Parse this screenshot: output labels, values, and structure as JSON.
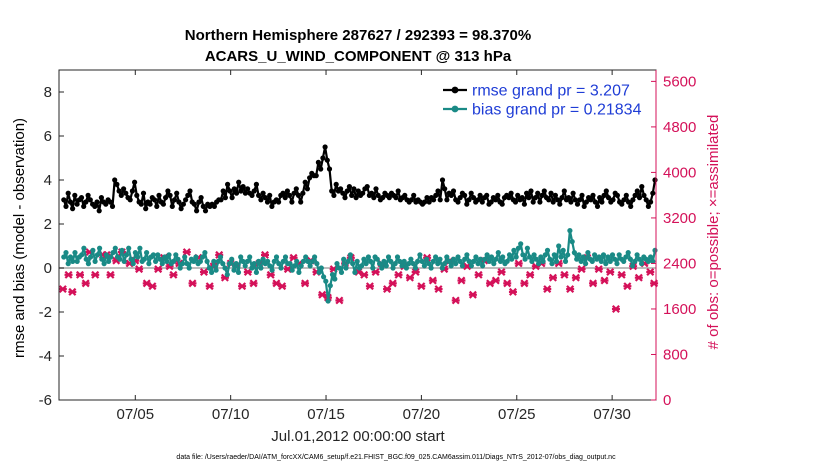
{
  "chart_data": {
    "type": "line",
    "title": [
      "Northern Hemisphere 287627 / 292393 = 98.370%",
      "ACARS_U_WIND_COMPONENT @ 313 hPa"
    ],
    "xlabel": "Jul.01,2012 00:00:00 start",
    "ylabel": "rmse and bias (model - observation)",
    "ylabel_right": "# of obs: o=possible; ×=assimilated",
    "footnote": "data file: /Users/raeder/DAI/ATM_forcXX/CAM6_setup/f.e21.FHIST_BGC.f09_025.CAM6assim.011/Diags_NTrS_2012-07/obs_diag_output.nc",
    "xlim": [
      1,
      32.3
    ],
    "ylim": [
      -6,
      9
    ],
    "ylim_right": [
      0,
      5800
    ],
    "x_ticks": [
      5,
      10,
      15,
      20,
      25,
      30
    ],
    "x_tick_labels": [
      "07/05",
      "07/10",
      "07/15",
      "07/20",
      "07/25",
      "07/30"
    ],
    "y_ticks": [
      -6,
      -4,
      -2,
      0,
      2,
      4,
      6,
      8
    ],
    "y_tick_labels": [
      "-6",
      "-4",
      "-2",
      "0",
      "2",
      "4",
      "6",
      "8"
    ],
    "y_right_ticks": [
      0,
      800,
      1600,
      2400,
      3200,
      4000,
      4800,
      5600
    ],
    "y_right_tick_labels": [
      "0",
      "800",
      "1600",
      "2400",
      "3200",
      "4000",
      "4800",
      "5600"
    ],
    "legend": {
      "position": "top-right",
      "entries": [
        "rmse grand pr = 3.207",
        "bias grand pr = 0.21834"
      ]
    },
    "colors": {
      "rmse": "#000000",
      "bias": "#1a8a86",
      "obs": "#d41159",
      "zero_line": "#bdbdbd",
      "legend_text": "#1f3dd6"
    },
    "series": [
      {
        "name": "rmse",
        "values": [
          3.1,
          2.8,
          3.4,
          3.0,
          2.7,
          3.3,
          2.9,
          3.1,
          3.2,
          2.8,
          3.0,
          3.3,
          3.1,
          2.9,
          2.8,
          3.0,
          2.6,
          3.2,
          3.0,
          2.9,
          3.1,
          3.0,
          2.8,
          4.0,
          3.8,
          3.5,
          3.3,
          3.6,
          3.4,
          3.2,
          3.1,
          3.5,
          3.9,
          3.3,
          3.0,
          2.9,
          3.4,
          2.7,
          3.0,
          2.9,
          3.2,
          3.1,
          2.8,
          3.3,
          3.0,
          2.9,
          3.2,
          3.5,
          3.3,
          2.8,
          3.1,
          3.4,
          3.0,
          2.7,
          2.9,
          3.1,
          3.3,
          3.5,
          3.0,
          2.9,
          2.6,
          3.0,
          3.2,
          2.8,
          2.6,
          2.9,
          2.8,
          2.9,
          2.8,
          3.0,
          3.1,
          3.1,
          3.5,
          3.2,
          3.8,
          3.5,
          3.2,
          3.6,
          3.4,
          3.9,
          3.5,
          3.7,
          3.4,
          3.6,
          3.4,
          3.3,
          3.5,
          3.8,
          3.3,
          3.1,
          3.4,
          3.2,
          3.0,
          3.3,
          2.8,
          3.0,
          3.1,
          3.0,
          3.3,
          3.4,
          3.2,
          3.5,
          3.3,
          3.0,
          3.4,
          3.6,
          3.3,
          3.0,
          3.4,
          3.9,
          3.6,
          4.1,
          4.3,
          4.2,
          4.2,
          4.8,
          4.5,
          5.0,
          5.5,
          4.9,
          4.5,
          3.5,
          3.3,
          3.8,
          3.5,
          3.6,
          3.4,
          3.2,
          3.5,
          3.7,
          3.3,
          3.6,
          3.2,
          3.5,
          3.3,
          3.4,
          3.6,
          3.7,
          3.3,
          3.4,
          3.2,
          3.6,
          3.3,
          3.1,
          3.2,
          3.4,
          3.3,
          3.2,
          3.4,
          3.3,
          3.2,
          3.5,
          3.1,
          3.2,
          3.3,
          3.1,
          3.0,
          3.1,
          3.3,
          3.0,
          3.1,
          3.0,
          2.9,
          3.0,
          3.2,
          3.0,
          3.2,
          3.1,
          3.3,
          3.5,
          3.1,
          4.0,
          3.6,
          3.1,
          3.4,
          3.3,
          3.5,
          3.1,
          3.0,
          3.2,
          3.4,
          3.3,
          2.9,
          3.1,
          3.4,
          3.2,
          3.0,
          3.1,
          3.3,
          3.0,
          3.2,
          3.3,
          2.9,
          3.0,
          3.2,
          3.1,
          3.3,
          3.0,
          2.9,
          3.2,
          3.3,
          3.2,
          3.4,
          3.1,
          3.0,
          3.3,
          3.1,
          3.2,
          2.9,
          3.4,
          3.2,
          3.5,
          3.0,
          3.2,
          3.4,
          3.0,
          3.3,
          3.5,
          3.2,
          3.1,
          3.4,
          3.0,
          3.3,
          3.1,
          2.9,
          3.2,
          3.5,
          3.1,
          3.2,
          3.0,
          3.4,
          3.1,
          2.9,
          3.1,
          3.3,
          2.8,
          3.0,
          3.2,
          3.1,
          3.3,
          3.0,
          2.8,
          3.2,
          3.0,
          3.3,
          3.5,
          3.2,
          3.0,
          3.1,
          3.4,
          3.3,
          3.0,
          2.9,
          3.1,
          3.3,
          3.0,
          2.8,
          3.1,
          3.3,
          3.5,
          3.2,
          3.7,
          3.3,
          3.1,
          2.8,
          3.0,
          3.4,
          4.0
        ]
      },
      {
        "name": "bias",
        "values": [
          0.5,
          0.7,
          0.2,
          0.5,
          0.3,
          0.7,
          0.3,
          0.5,
          0.6,
          0.9,
          0.4,
          0.2,
          0.5,
          0.8,
          0.3,
          0.6,
          0.9,
          0.4,
          0.2,
          0.6,
          0.3,
          0.5,
          0.7,
          0.9,
          0.5,
          0.4,
          0.8,
          0.3,
          0.6,
          0.9,
          0.4,
          0.2,
          0.7,
          0.5,
          0.9,
          0.3,
          0.4,
          0.7,
          0.2,
          0.5,
          0.6,
          0.3,
          0.6,
          0.4,
          0.2,
          0.5,
          0.3,
          0.6,
          0.2,
          0.3,
          0.6,
          0.4,
          0.0,
          0.2,
          0.5,
          0.2,
          0.0,
          0.4,
          0.3,
          0.5,
          0.2,
          0.3,
          0.5,
          0.7,
          0.3,
          0.0,
          -0.2,
          0.3,
          -0.1,
          0.3,
          0.5,
          0.2,
          0.0,
          -0.3,
          0.2,
          0.4,
          -0.1,
          0.2,
          -0.2,
          0.5,
          0.3,
          0.1,
          0.3,
          0.5,
          0.0,
          0.2,
          -0.2,
          0.3,
          0.0,
          0.4,
          0.2,
          0.3,
          0.1,
          -0.1,
          0.3,
          0.5,
          0.2,
          0.0,
          0.3,
          0.5,
          0.2,
          0.2,
          -0.1,
          0.1,
          0.3,
          -0.2,
          0.1,
          0.3,
          0.5,
          0.3,
          0.1,
          0.3,
          0.5,
          0.2,
          -0.2,
          0.0,
          -0.4,
          -0.6,
          -1.5,
          -0.8,
          -0.3,
          -0.5,
          0.2,
          0.0,
          -0.2,
          0.4,
          0.0,
          0.3,
          0.6,
          0.2,
          -0.2,
          0.3,
          0.0,
          0.1,
          0.4,
          0.2,
          0.5,
          0.3,
          0.0,
          0.5,
          0.4,
          0.2,
          0.0,
          0.3,
          0.1,
          0.5,
          0.3,
          0.0,
          0.2,
          0.5,
          0.3,
          0.1,
          0.3,
          0.0,
          0.2,
          0.4,
          0.2,
          0.0,
          0.3,
          0.6,
          0.3,
          0.1,
          0.4,
          0.2,
          0.0,
          0.3,
          0.5,
          0.2,
          0.4,
          0.0,
          0.2,
          0.5,
          0.3,
          0.1,
          0.4,
          0.2,
          0.5,
          0.3,
          0.1,
          0.4,
          0.6,
          0.3,
          0.1,
          0.3,
          0.5,
          0.2,
          0.4,
          0.1,
          0.4,
          0.6,
          0.3,
          0.5,
          0.2,
          0.4,
          0.7,
          0.3,
          0.5,
          0.2,
          0.3,
          0.6,
          0.4,
          0.8,
          0.5,
          0.9,
          1.1,
          0.6,
          0.4,
          0.9,
          0.5,
          0.3,
          0.6,
          0.4,
          0.2,
          0.5,
          0.3,
          0.6,
          0.8,
          0.4,
          0.2,
          0.6,
          0.3,
          1.0,
          0.5,
          0.8,
          0.3,
          0.6,
          1.7,
          1.2,
          0.7,
          0.4,
          0.6,
          0.3,
          0.5,
          0.2,
          0.7,
          0.4,
          0.3,
          0.6,
          0.4,
          0.5,
          0.3,
          0.6,
          0.2,
          0.5,
          0.3,
          0.6,
          0.4,
          0.2,
          0.6,
          0.4,
          0.3,
          0.5,
          0.7,
          0.4,
          0.1,
          0.3,
          0.6,
          0.4,
          0.2,
          0.5,
          0.4,
          0.3,
          0.5,
          0.3,
          0.8
        ]
      },
      {
        "name": "obs_assimilated",
        "x": [
          1.2,
          1.5,
          1.7,
          2.1,
          2.4,
          2.6,
          2.9,
          3.3,
          3.5,
          3.7,
          4.0,
          4.3,
          4.7,
          5.0,
          5.2,
          5.6,
          5.9,
          6.2,
          6.5,
          6.8,
          7.0,
          7.3,
          7.7,
          8.0,
          8.3,
          8.6,
          8.9,
          9.1,
          9.4,
          9.7,
          10.0,
          10.3,
          10.6,
          10.9,
          11.2,
          11.5,
          11.8,
          12.1,
          12.4,
          12.7,
          13.0,
          13.3,
          13.6,
          13.9,
          14.2,
          14.5,
          14.8,
          15.1,
          15.4,
          15.7,
          16.0,
          16.3,
          16.7,
          17.0,
          17.3,
          17.6,
          17.9,
          18.2,
          18.5,
          18.8,
          19.1,
          19.4,
          19.7,
          20.0,
          20.3,
          20.6,
          20.9,
          21.2,
          21.5,
          21.8,
          22.1,
          22.4,
          22.7,
          23.0,
          23.3,
          23.6,
          23.9,
          24.2,
          24.5,
          24.8,
          25.1,
          25.4,
          25.7,
          26.0,
          26.3,
          26.6,
          26.9,
          27.2,
          27.5,
          27.8,
          28.1,
          28.4,
          28.7,
          29.0,
          29.3,
          29.6,
          29.9,
          30.2,
          30.5,
          30.8,
          31.1,
          31.4,
          31.7,
          32.0,
          32.2
        ],
        "values": [
          1950,
          2200,
          1900,
          2200,
          2050,
          2600,
          2200,
          2550,
          2550,
          2200,
          2450,
          2600,
          2400,
          2450,
          2300,
          2050,
          2000,
          2300,
          2500,
          2350,
          2200,
          2400,
          2600,
          2050,
          2500,
          2250,
          2000,
          2350,
          2550,
          2150,
          2400,
          2350,
          2000,
          2250,
          2050,
          2400,
          2550,
          2200,
          2050,
          2000,
          2300,
          2500,
          2400,
          2050,
          2450,
          2250,
          1850,
          1800,
          2300,
          1750,
          2400,
          2500,
          2250,
          2200,
          2000,
          2250,
          2400,
          1950,
          2050,
          2200,
          2350,
          2150,
          2250,
          2000,
          2500,
          2100,
          1950,
          2300,
          2450,
          1750,
          2100,
          2350,
          1850,
          2200,
          2450,
          2050,
          2100,
          2250,
          2050,
          1900,
          2400,
          2050,
          2200,
          2350,
          2400,
          1950,
          2150,
          2400,
          2200,
          1950,
          2150,
          2300,
          2500,
          2050,
          2300,
          2100,
          2250,
          1600,
          2200,
          2000,
          2350,
          2150,
          2400,
          2250,
          2050
        ]
      }
    ]
  }
}
